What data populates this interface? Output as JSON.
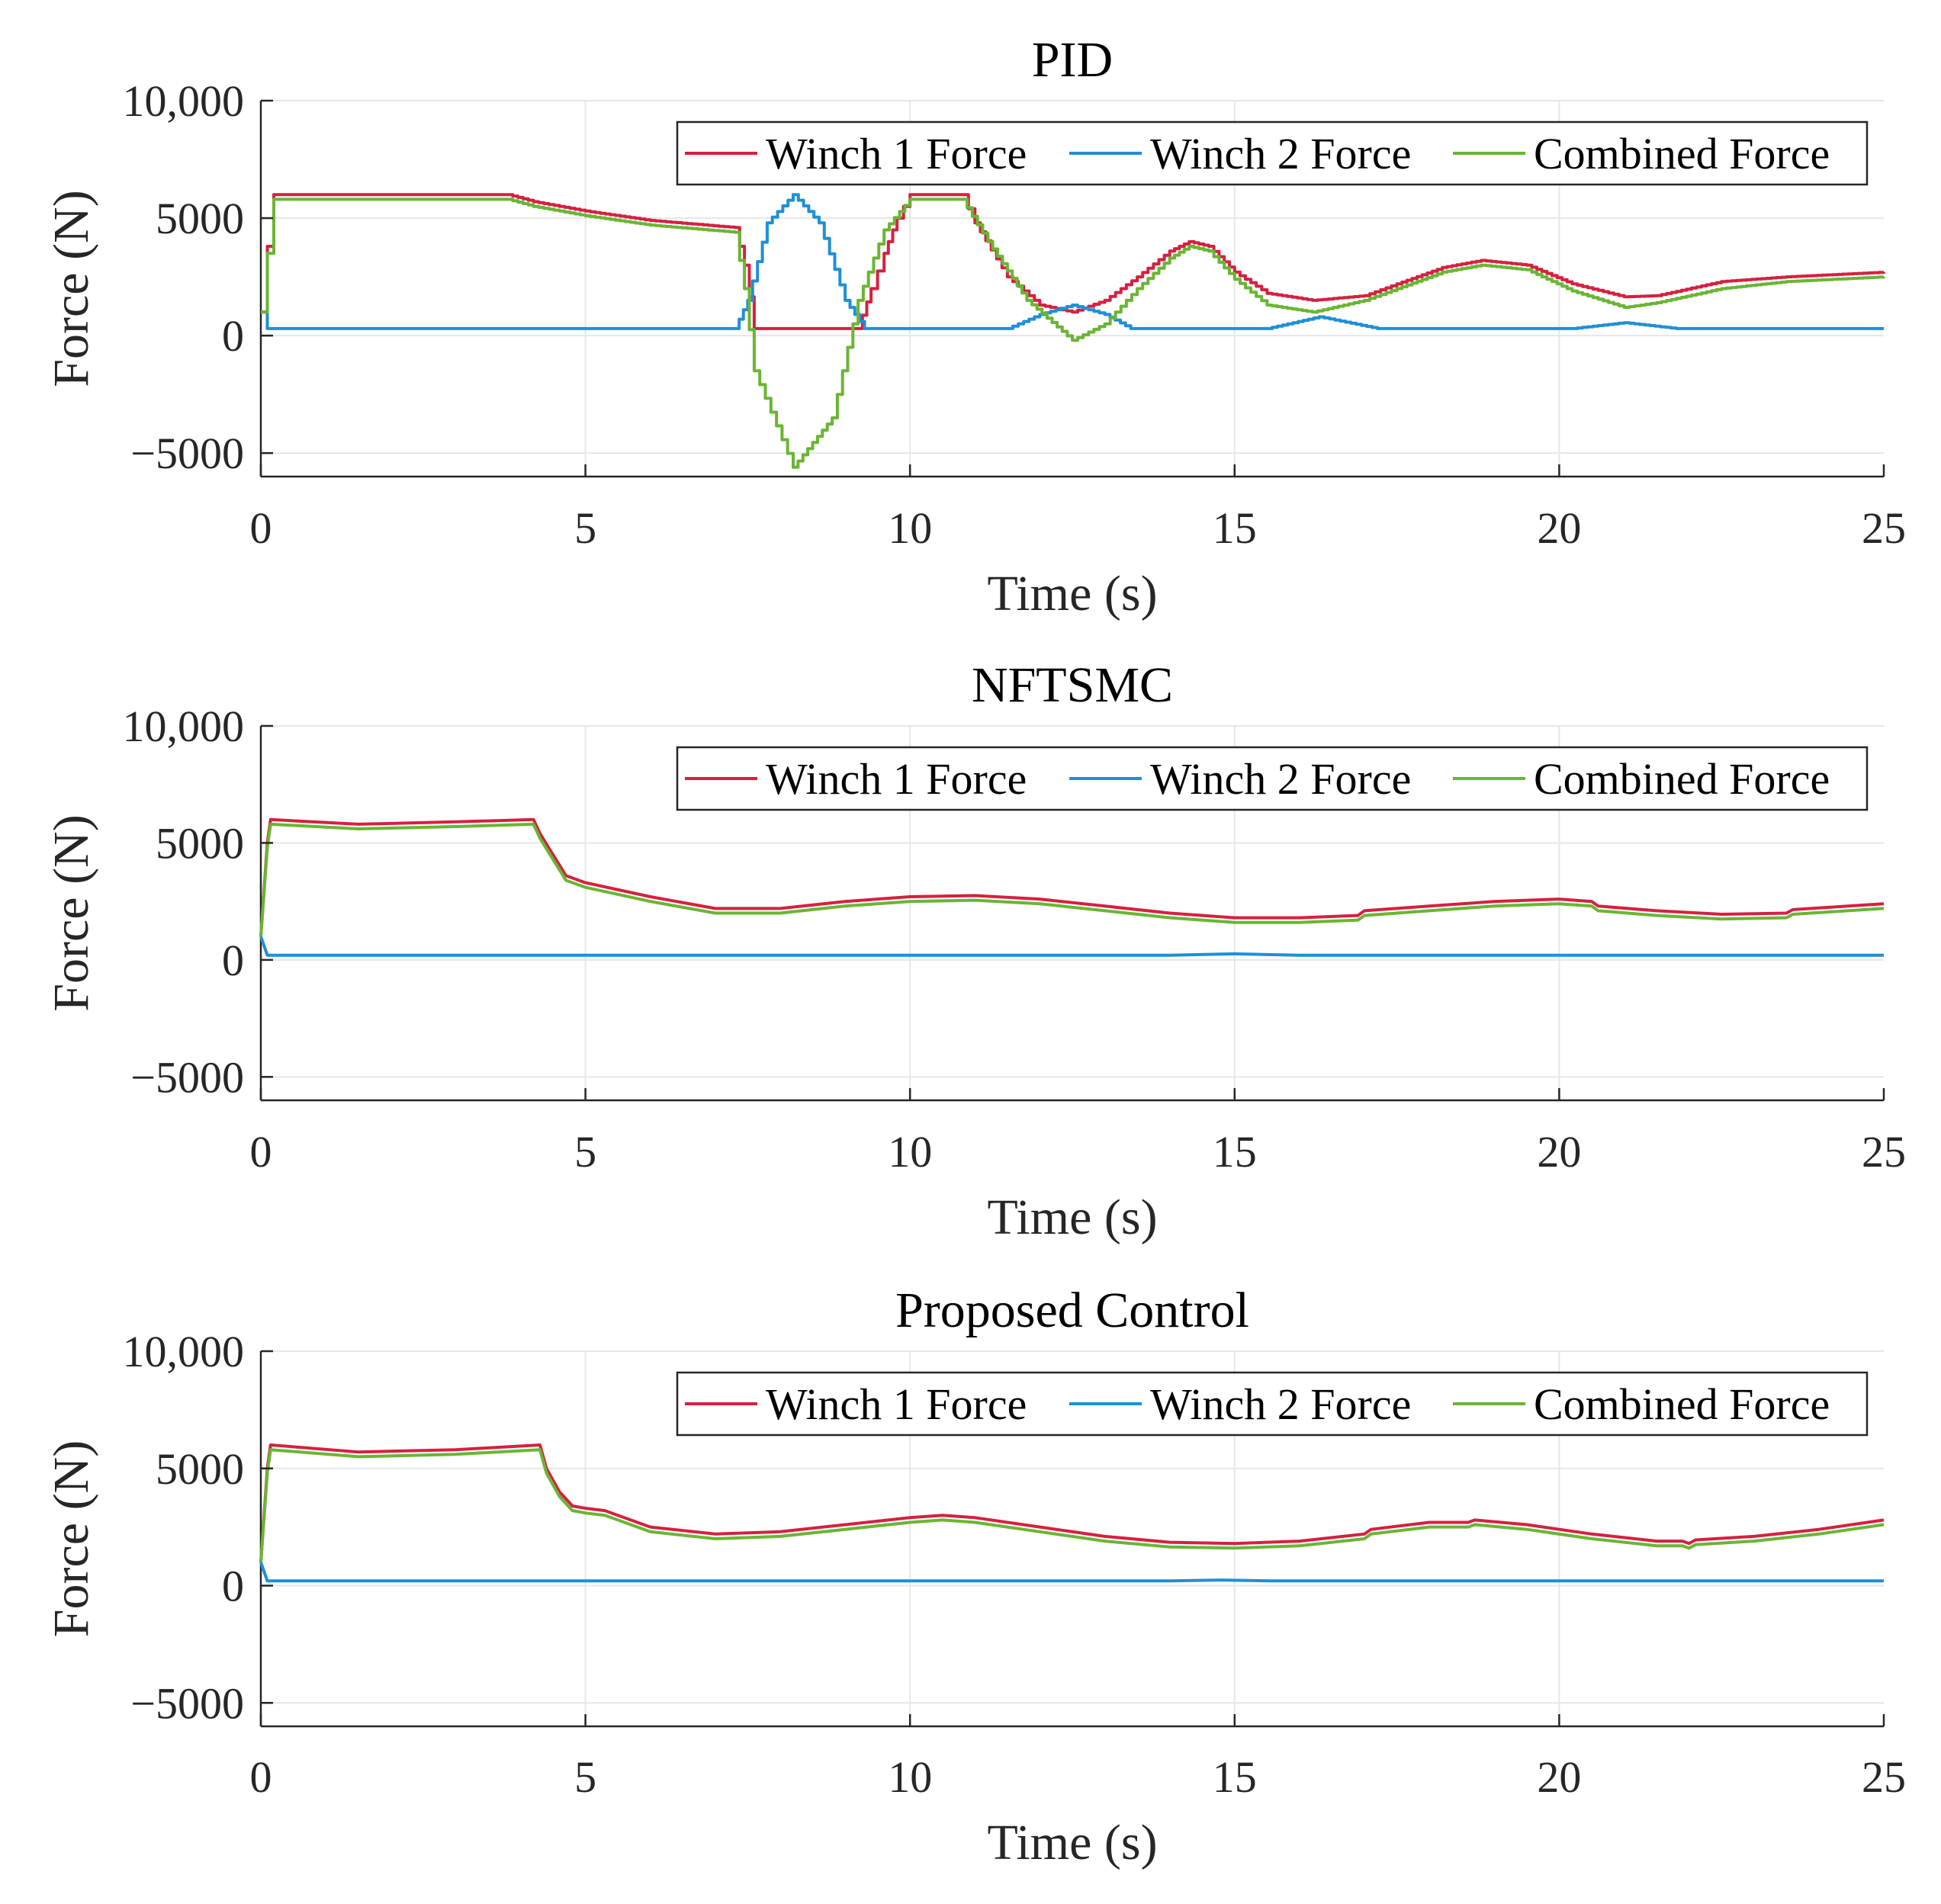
{
  "chart_data": [
    {
      "type": "line",
      "title": "PID",
      "xlabel": "Time (s)",
      "ylabel": "Force (N)",
      "xlim": [
        0,
        25
      ],
      "ylim": [
        -6000,
        10000
      ],
      "xticks": [
        0,
        5,
        10,
        15,
        20,
        25
      ],
      "xtick_labels": [
        "0",
        "5",
        "10",
        "15",
        "20",
        "25"
      ],
      "yticks": [
        -5000,
        0,
        5000,
        10000
      ],
      "ytick_labels": [
        "−5000",
        "0",
        "5000",
        "10,000"
      ],
      "grid": true,
      "legend_position": "top-right",
      "step": true,
      "series": [
        {
          "name": "Winch 1 Force",
          "color": "#d62040",
          "x": [
            0,
            0.1,
            0.2,
            3.8,
            4.2,
            5,
            6,
            7.3,
            7.45,
            7.6,
            8.2,
            9.2,
            9.4,
            9.6,
            9.8,
            10,
            10.8,
            11,
            11.5,
            12,
            12.5,
            13,
            13.5,
            14,
            14.3,
            14.6,
            15,
            15.5,
            16.2,
            17,
            17.5,
            18.2,
            18.8,
            19.5,
            20.2,
            21,
            21.5,
            22.5,
            23.5,
            25
          ],
          "values": [
            1000,
            3800,
            6000,
            6000,
            5700,
            5300,
            4900,
            4600,
            3000,
            300,
            300,
            300,
            2000,
            3500,
            5000,
            6000,
            6000,
            4800,
            2500,
            1300,
            1000,
            1500,
            2500,
            3600,
            4000,
            3800,
            2700,
            1800,
            1500,
            1700,
            2200,
            2900,
            3200,
            3000,
            2200,
            1650,
            1700,
            2300,
            2500,
            2700
          ]
        },
        {
          "name": "Winch 2 Force",
          "color": "#1f8fd6",
          "x": [
            0,
            0.1,
            7.3,
            7.5,
            7.8,
            8.2,
            8.6,
            9.0,
            9.3,
            11.5,
            12,
            12.5,
            13.0,
            13.4,
            15.5,
            16.3,
            17.2,
            20.2,
            21.0,
            21.8,
            25
          ],
          "values": [
            1000,
            300,
            300,
            1500,
            4800,
            6000,
            4800,
            1500,
            300,
            300,
            900,
            1300,
            900,
            300,
            300,
            800,
            300,
            300,
            550,
            300,
            300
          ]
        },
        {
          "name": "Combined Force",
          "color": "#6ab533",
          "x": [
            0,
            0.1,
            0.2,
            3.8,
            4.2,
            5,
            6,
            7.3,
            7.45,
            7.6,
            8.2,
            8.8,
            9.2,
            9.6,
            10,
            10.8,
            11.2,
            11.8,
            12.5,
            13,
            13.5,
            14,
            14.3,
            14.6,
            15,
            15.5,
            16.2,
            17,
            17.5,
            18.2,
            18.8,
            19.5,
            20.2,
            21,
            21.5,
            22.5,
            23.5,
            25
          ],
          "values": [
            1000,
            3500,
            5800,
            5800,
            5500,
            5100,
            4700,
            4400,
            2000,
            -1500,
            -5600,
            -3500,
            1500,
            4500,
            5800,
            5800,
            4000,
            1500,
            -200,
            500,
            2000,
            3300,
            3800,
            3600,
            2400,
            1300,
            1000,
            1500,
            2000,
            2700,
            3000,
            2800,
            1900,
            1200,
            1400,
            2000,
            2300,
            2500
          ]
        }
      ]
    },
    {
      "type": "line",
      "title": "NFTSMC",
      "xlabel": "Time (s)",
      "ylabel": "Force (N)",
      "xlim": [
        0,
        25
      ],
      "ylim": [
        -6000,
        10000
      ],
      "xticks": [
        0,
        5,
        10,
        15,
        20,
        25
      ],
      "xtick_labels": [
        "0",
        "5",
        "10",
        "15",
        "20",
        "25"
      ],
      "yticks": [
        -5000,
        0,
        5000,
        10000
      ],
      "ytick_labels": [
        "−5000",
        "0",
        "5000",
        "10,000"
      ],
      "grid": true,
      "legend_position": "top-right",
      "step": false,
      "series": [
        {
          "name": "Winch 1 Force",
          "color": "#d62040",
          "x": [
            0,
            0.1,
            0.15,
            1.5,
            3,
            4.2,
            4.3,
            4.5,
            4.7,
            5,
            6,
            7,
            8,
            9,
            10,
            11,
            12,
            13,
            14,
            15,
            16,
            16.9,
            17.0,
            18,
            19,
            20,
            20.5,
            20.6,
            21.5,
            22.5,
            23.5,
            23.6,
            25
          ],
          "values": [
            1000,
            5000,
            6000,
            5800,
            5900,
            6000,
            5400,
            4500,
            3600,
            3300,
            2700,
            2200,
            2200,
            2500,
            2700,
            2750,
            2600,
            2300,
            2000,
            1800,
            1800,
            1900,
            2100,
            2300,
            2500,
            2600,
            2500,
            2300,
            2100,
            1950,
            2000,
            2150,
            2400
          ]
        },
        {
          "name": "Winch 2 Force",
          "color": "#1f8fd6",
          "x": [
            0,
            0.1,
            14,
            15,
            16,
            25
          ],
          "values": [
            1000,
            200,
            200,
            260,
            200,
            200
          ]
        },
        {
          "name": "Combined Force",
          "color": "#6ab533",
          "x": [
            0,
            0.1,
            0.15,
            1.5,
            3,
            4.2,
            4.3,
            4.5,
            4.7,
            5,
            6,
            7,
            8,
            9,
            10,
            11,
            12,
            13,
            14,
            15,
            16,
            16.9,
            17.0,
            18,
            19,
            20,
            20.5,
            20.6,
            21.5,
            22.5,
            23.5,
            23.6,
            25
          ],
          "values": [
            1000,
            4800,
            5800,
            5600,
            5700,
            5800,
            5200,
            4300,
            3400,
            3100,
            2500,
            2000,
            2000,
            2300,
            2500,
            2550,
            2400,
            2100,
            1800,
            1600,
            1600,
            1700,
            1900,
            2100,
            2300,
            2400,
            2300,
            2100,
            1900,
            1750,
            1800,
            1950,
            2200
          ]
        }
      ]
    },
    {
      "type": "line",
      "title": "Proposed Control",
      "xlabel": "Time (s)",
      "ylabel": "Force (N)",
      "xlim": [
        0,
        25
      ],
      "ylim": [
        -6000,
        10000
      ],
      "xticks": [
        0,
        5,
        10,
        15,
        20,
        25
      ],
      "xtick_labels": [
        "0",
        "5",
        "10",
        "15",
        "20",
        "25"
      ],
      "yticks": [
        -5000,
        0,
        5000,
        10000
      ],
      "ytick_labels": [
        "−5000",
        "0",
        "5000",
        "10,000"
      ],
      "grid": true,
      "legend_position": "top-right",
      "step": false,
      "series": [
        {
          "name": "Winch 1 Force",
          "color": "#d62040",
          "x": [
            0,
            0.1,
            0.15,
            1.5,
            3,
            4.3,
            4.4,
            4.6,
            4.8,
            5,
            5.3,
            6,
            7,
            8,
            9,
            10,
            10.5,
            11,
            12,
            13,
            14,
            15,
            16,
            17,
            17.1,
            18,
            18.6,
            18.7,
            19.5,
            20.5,
            21.5,
            21.9,
            22.0,
            22.1,
            23,
            24,
            25
          ],
          "values": [
            1000,
            5000,
            6000,
            5700,
            5800,
            6000,
            5000,
            4000,
            3400,
            3300,
            3200,
            2500,
            2200,
            2300,
            2600,
            2900,
            3000,
            2900,
            2500,
            2100,
            1850,
            1800,
            1900,
            2200,
            2400,
            2700,
            2700,
            2800,
            2600,
            2200,
            1900,
            1900,
            1800,
            1950,
            2100,
            2400,
            2800
          ]
        },
        {
          "name": "Winch 2 Force",
          "color": "#1f8fd6",
          "x": [
            0,
            0.1,
            14,
            14.8,
            15.6,
            25
          ],
          "values": [
            1000,
            200,
            200,
            240,
            200,
            200
          ]
        },
        {
          "name": "Combined Force",
          "color": "#6ab533",
          "x": [
            0,
            0.1,
            0.15,
            1.5,
            3,
            4.3,
            4.4,
            4.6,
            4.8,
            5,
            5.3,
            6,
            7,
            8,
            9,
            10,
            10.5,
            11,
            12,
            13,
            14,
            15,
            16,
            17,
            17.1,
            18,
            18.6,
            18.7,
            19.5,
            20.5,
            21.5,
            21.9,
            22.0,
            22.1,
            23,
            24,
            25
          ],
          "values": [
            1000,
            4800,
            5800,
            5500,
            5600,
            5800,
            4800,
            3800,
            3200,
            3100,
            3000,
            2300,
            2000,
            2100,
            2400,
            2700,
            2800,
            2700,
            2300,
            1900,
            1650,
            1600,
            1700,
            2000,
            2200,
            2500,
            2500,
            2600,
            2400,
            2000,
            1700,
            1700,
            1600,
            1750,
            1900,
            2200,
            2600
          ]
        }
      ]
    }
  ]
}
